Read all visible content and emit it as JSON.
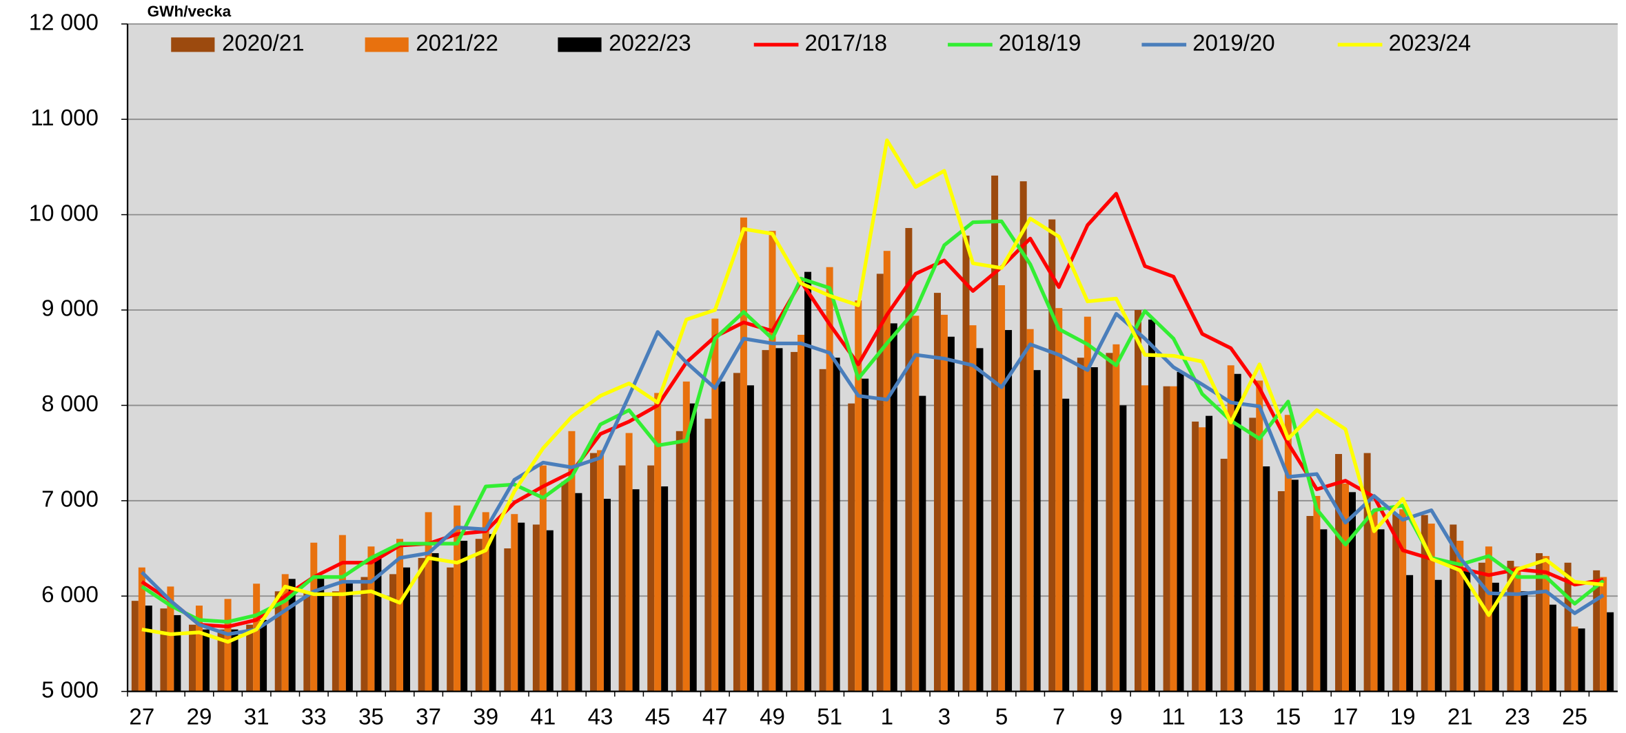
{
  "chart_data": {
    "type": "bar",
    "unit_label": "GWh/vecka",
    "categories": [
      "27",
      null,
      "29",
      null,
      "31",
      null,
      "33",
      null,
      "35",
      null,
      "37",
      null,
      "39",
      null,
      "41",
      null,
      "43",
      null,
      "45",
      null,
      "47",
      null,
      "49",
      null,
      "51",
      null,
      "1",
      null,
      "3",
      null,
      "5",
      null,
      "7",
      null,
      "9",
      null,
      "11",
      null,
      "13",
      null,
      "15",
      null,
      "17",
      null,
      "19",
      null,
      "21",
      null,
      "23",
      null,
      "25",
      null
    ],
    "ylim": [
      5000,
      12000
    ],
    "yticks": [
      {
        "value": 5000,
        "label": "5 000"
      },
      {
        "value": 6000,
        "label": "6 000"
      },
      {
        "value": 7000,
        "label": "7 000"
      },
      {
        "value": 8000,
        "label": "8 000"
      },
      {
        "value": 9000,
        "label": "9 000"
      },
      {
        "value": 10000,
        "label": "10 000"
      },
      {
        "value": 11000,
        "label": "11 000"
      },
      {
        "value": 12000,
        "label": "12 000"
      }
    ],
    "grid": true,
    "background": "#d9d9d9",
    "series": [
      {
        "name": "2020/21",
        "type": "bar",
        "color": "#9c4a0e",
        "values": [
          5950,
          5870,
          5700,
          5650,
          5700,
          6050,
          6050,
          6050,
          6200,
          6230,
          6400,
          6300,
          6600,
          6500,
          6750,
          7200,
          7500,
          7370,
          7370,
          7730,
          7860,
          8340,
          8580,
          8560,
          8380,
          8020,
          9380,
          9860,
          9180,
          9780,
          10410,
          10350,
          9950,
          8500,
          8550,
          9000,
          8200,
          7830,
          7440,
          7870,
          7100,
          6840,
          7490,
          7500,
          6860,
          6850,
          6750,
          6350,
          6370,
          6450,
          6350,
          6270
        ]
      },
      {
        "name": "2021/22",
        "type": "bar",
        "color": "#e8710e",
        "values": [
          6300,
          6100,
          5900,
          5970,
          6130,
          6230,
          6560,
          6640,
          6520,
          6600,
          6880,
          6950,
          6880,
          6860,
          7370,
          7730,
          7530,
          7710,
          8130,
          8250,
          8910,
          9970,
          9830,
          8740,
          9450,
          9100,
          9620,
          8940,
          8950,
          8840,
          9260,
          8800,
          9020,
          8930,
          8640,
          8210,
          8200,
          7770,
          8420,
          8260,
          7900,
          7050,
          7180,
          6890,
          6910,
          6760,
          6580,
          6520,
          6310,
          6420,
          5680,
          6200
        ]
      },
      {
        "name": "2022/23",
        "type": "bar",
        "color": "#000000",
        "values": [
          5900,
          5800,
          5650,
          5650,
          5750,
          6180,
          6200,
          6150,
          6400,
          6300,
          6450,
          6580,
          6650,
          6770,
          6690,
          7080,
          7020,
          7120,
          7150,
          8020,
          8250,
          8210,
          8600,
          9400,
          8500,
          8280,
          8860,
          8100,
          8720,
          8600,
          8790,
          8370,
          8070,
          8400,
          8000,
          8900,
          8350,
          7890,
          8330,
          7360,
          7220,
          6700,
          7090,
          6700,
          6220,
          6170,
          6300,
          6140,
          6050,
          5910,
          5660,
          5830
        ]
      },
      {
        "name": "2017/18",
        "type": "line",
        "color": "#ff0000",
        "values": [
          6150,
          5950,
          5700,
          5680,
          5750,
          6000,
          6200,
          6350,
          6350,
          6530,
          6550,
          6650,
          6680,
          6980,
          7150,
          7300,
          7700,
          7830,
          8000,
          8450,
          8720,
          8870,
          8780,
          9300,
          8850,
          8430,
          8950,
          9380,
          9520,
          9200,
          9450,
          9750,
          9240,
          9890,
          10220,
          9460,
          9350,
          8750,
          8600,
          8180,
          7600,
          7120,
          7210,
          7040,
          6480,
          6390,
          6290,
          6220,
          6280,
          6250,
          6120,
          6170
        ]
      },
      {
        "name": "2018/19",
        "type": "line",
        "color": "#33ee33",
        "values": [
          6100,
          5900,
          5750,
          5730,
          5800,
          5950,
          6200,
          6200,
          6400,
          6550,
          6550,
          6550,
          7150,
          7170,
          7030,
          7250,
          7800,
          7950,
          7580,
          7630,
          8700,
          8980,
          8700,
          9330,
          9230,
          8280,
          8650,
          9000,
          9680,
          9920,
          9930,
          9480,
          8800,
          8640,
          8420,
          8990,
          8700,
          8120,
          7840,
          7650,
          8040,
          6910,
          6540,
          6900,
          6950,
          6400,
          6330,
          6420,
          6200,
          6200,
          5920,
          6160
        ]
      },
      {
        "name": "2019/20",
        "type": "line",
        "color": "#4a7ebb",
        "values": [
          6250,
          5950,
          5700,
          5600,
          5650,
          5850,
          6050,
          6150,
          6150,
          6400,
          6450,
          6720,
          6700,
          7220,
          7400,
          7350,
          7450,
          8100,
          8770,
          8450,
          8180,
          8700,
          8650,
          8650,
          8550,
          8100,
          8060,
          8530,
          8490,
          8420,
          8190,
          8640,
          8530,
          8370,
          8960,
          8700,
          8400,
          8220,
          8030,
          7990,
          7250,
          7280,
          6770,
          7050,
          6800,
          6900,
          6400,
          6030,
          6020,
          6050,
          5820,
          6010
        ]
      },
      {
        "name": "2023/24",
        "type": "line",
        "color": "#ffff00",
        "values": [
          5650,
          5600,
          5620,
          5520,
          5650,
          6100,
          6020,
          6020,
          6050,
          5930,
          6400,
          6350,
          6480,
          7100,
          7550,
          7880,
          8100,
          8230,
          8030,
          8900,
          9000,
          9850,
          9800,
          9280,
          9150,
          9050,
          10780,
          10290,
          10460,
          9490,
          9440,
          9960,
          9770,
          9090,
          9120,
          8530,
          8520,
          8460,
          7820,
          8430,
          7650,
          7950,
          7750,
          6680,
          7020,
          6390,
          6270,
          5800,
          6280,
          6380,
          6150,
          6120
        ]
      }
    ]
  }
}
